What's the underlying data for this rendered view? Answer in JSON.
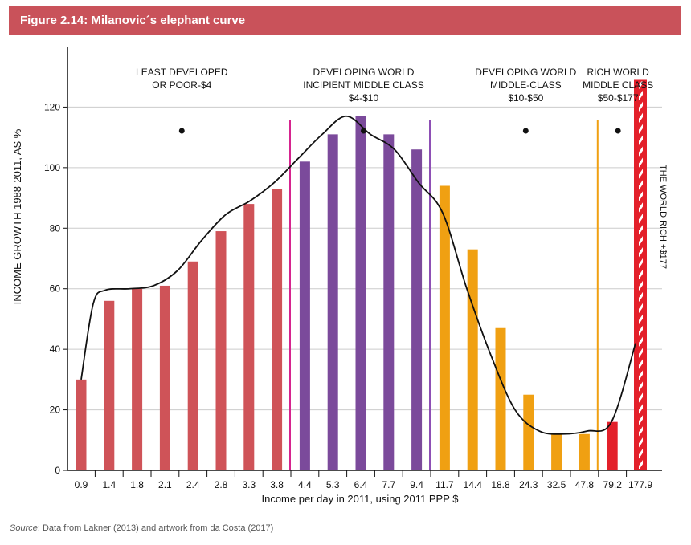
{
  "figure": {
    "title": "Figure 2.14: Milanovic´s elephant curve",
    "source_label": "Source",
    "source_text": ": Data from Lakner (2013) and artwork from da Costa (2017)"
  },
  "colors": {
    "banner": "#c9525a",
    "poor": "#cf5358",
    "incipient": "#7b4a9b",
    "middle": "#f0a012",
    "rich": "#e3202a",
    "curve": "#111111",
    "grid": "#cccccc",
    "divider_pink": "#d6248f",
    "divider_purple": "#8e4fb5",
    "divider_orange": "#f0a012"
  },
  "chart_data": {
    "type": "bar",
    "title": "",
    "xlabel": "Income per day in 2011, using 2011 PPP $",
    "ylabel": "INCOME GROWTH 1988-2011, AS %",
    "ylim": [
      0,
      140
    ],
    "yticks": [
      0,
      20,
      40,
      60,
      80,
      100,
      120
    ],
    "grid": true,
    "categories": [
      "0.9",
      "1.4",
      "1.8",
      "2.1",
      "2.4",
      "2.8",
      "3.3",
      "3.8",
      "4.4",
      "5.3",
      "6.4",
      "7.7",
      "9.4",
      "11.7",
      "14.4",
      "18.8",
      "24.3",
      "32.5",
      "47.8",
      "79.2",
      "177.9"
    ],
    "values": [
      30,
      56,
      60,
      61,
      69,
      79,
      88,
      93,
      102,
      111,
      117,
      111,
      106,
      94,
      73,
      47,
      25,
      12,
      12,
      16,
      129
    ],
    "groups": [
      "poor",
      "poor",
      "poor",
      "poor",
      "poor",
      "poor",
      "poor",
      "poor",
      "incipient",
      "incipient",
      "incipient",
      "incipient",
      "incipient",
      "middle",
      "middle",
      "middle",
      "middle",
      "middle",
      "middle",
      "rich",
      "rich"
    ],
    "curve_points": [
      {
        "x": 0,
        "y": 30
      },
      {
        "x": 0.5,
        "y": 55
      },
      {
        "x": 1,
        "y": 59.5
      },
      {
        "x": 2,
        "y": 60
      },
      {
        "x": 3,
        "y": 61
      },
      {
        "x": 4,
        "y": 66
      },
      {
        "x": 5,
        "y": 76
      },
      {
        "x": 6,
        "y": 84.5
      },
      {
        "x": 7,
        "y": 89
      },
      {
        "x": 8,
        "y": 95
      },
      {
        "x": 9,
        "y": 103
      },
      {
        "x": 10,
        "y": 111
      },
      {
        "x": 11,
        "y": 117
      },
      {
        "x": 12,
        "y": 111
      },
      {
        "x": 13,
        "y": 106
      },
      {
        "x": 14,
        "y": 95
      },
      {
        "x": 15,
        "y": 85
      },
      {
        "x": 16,
        "y": 60
      },
      {
        "x": 17,
        "y": 38
      },
      {
        "x": 18,
        "y": 20
      },
      {
        "x": 19,
        "y": 13
      },
      {
        "x": 20,
        "y": 12
      },
      {
        "x": 21,
        "y": 13
      },
      {
        "x": 22,
        "y": 16
      },
      {
        "x": 23,
        "y": 42
      }
    ],
    "dividers": [
      {
        "after_index": 7,
        "color_key": "divider_pink"
      },
      {
        "after_index": 12,
        "color_key": "divider_purple"
      },
      {
        "after_index": 18,
        "color_key": "divider_orange"
      }
    ],
    "annotations": [
      {
        "lines": [
          "LEAST DEVELOPED",
          "OR POOR-$4"
        ],
        "at_index": 3.6
      },
      {
        "lines": [
          "DEVELOPING WORLD",
          "INCIPIENT MIDDLE CLASS",
          "$4-$10"
        ],
        "at_index": 10.1
      },
      {
        "lines": [
          "DEVELOPING WORLD",
          "MIDDLE-CLASS",
          "$10-$50"
        ],
        "at_index": 15.9
      },
      {
        "lines": [
          "RICH WORLD",
          "MIDDLE CLASS",
          "$50-$177"
        ],
        "at_index": 19.2
      }
    ],
    "rich_label": "THE WORLD RICH +$177"
  }
}
